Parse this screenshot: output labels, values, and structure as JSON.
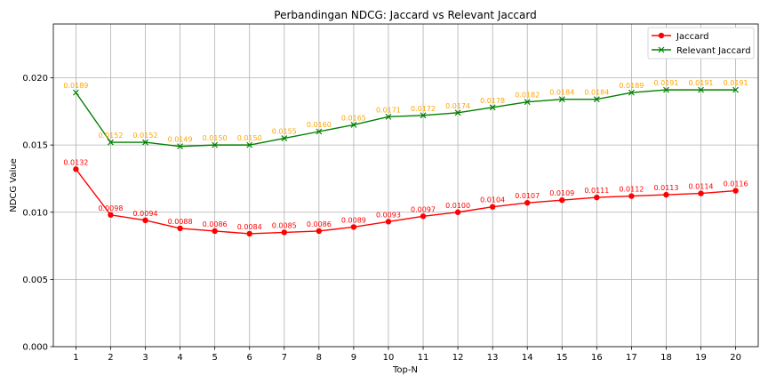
{
  "chart_data": {
    "type": "line",
    "title": "Perbandingan NDCG: Jaccard vs Relevant Jaccard",
    "xlabel": "Top-N",
    "ylabel": "NDCG Value",
    "x": [
      1,
      2,
      3,
      4,
      5,
      6,
      7,
      8,
      9,
      10,
      11,
      12,
      13,
      14,
      15,
      16,
      17,
      18,
      19,
      20
    ],
    "xticks": [
      "1",
      "2",
      "3",
      "4",
      "5",
      "6",
      "7",
      "8",
      "9",
      "10",
      "11",
      "12",
      "13",
      "14",
      "15",
      "16",
      "17",
      "18",
      "19",
      "20"
    ],
    "ylim": [
      0,
      0.024
    ],
    "yticks": [
      "0.000",
      "0.005",
      "0.010",
      "0.015",
      "0.020"
    ],
    "yticks_values": [
      0,
      0.005,
      0.01,
      0.015,
      0.02
    ],
    "grid": true,
    "legend": "top-right",
    "series": [
      {
        "name": "Jaccard",
        "color": "#ff0000",
        "label_color": "#ff0000",
        "marker": "circle",
        "values": [
          0.0132,
          0.0098,
          0.0094,
          0.0088,
          0.0086,
          0.0084,
          0.0085,
          0.0086,
          0.0089,
          0.0093,
          0.0097,
          0.01,
          0.0104,
          0.0107,
          0.0109,
          0.0111,
          0.0112,
          0.0113,
          0.0114,
          0.0116
        ],
        "labels": [
          "0.0132",
          "0.0098",
          "0.0094",
          "0.0088",
          "0.0086",
          "0.0084",
          "0.0085",
          "0.0086",
          "0.0089",
          "0.0093",
          "0.0097",
          "0.0100",
          "0.0104",
          "0.0107",
          "0.0109",
          "0.0111",
          "0.0112",
          "0.0113",
          "0.0114",
          "0.0116"
        ]
      },
      {
        "name": "Relevant Jaccard",
        "color": "#008000",
        "label_color": "#ffa500",
        "marker": "x",
        "values": [
          0.0189,
          0.0152,
          0.0152,
          0.0149,
          0.015,
          0.015,
          0.0155,
          0.016,
          0.0165,
          0.0171,
          0.0172,
          0.0174,
          0.0178,
          0.0182,
          0.0184,
          0.0184,
          0.0189,
          0.0191,
          0.0191,
          0.0191
        ],
        "labels": [
          "0.0189",
          "0.0152",
          "0.0152",
          "0.0149",
          "0.0150",
          "0.0150",
          "0.0155",
          "0.0160",
          "0.0165",
          "0.0171",
          "0.0172",
          "0.0174",
          "0.0178",
          "0.0182",
          "0.0184",
          "0.0184",
          "0.0189",
          "0.0191",
          "0.0191",
          "0.0191"
        ]
      }
    ]
  }
}
